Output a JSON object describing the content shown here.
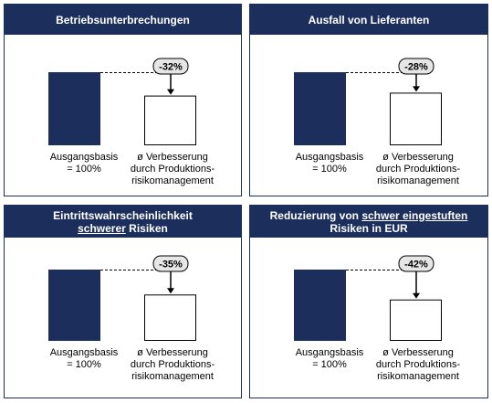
{
  "colors": {
    "navy": "#1c2f5c",
    "white": "#ffffff",
    "bubble": "#e6e6e6"
  },
  "chart_data": [
    {
      "type": "bar",
      "title": "Betriebsunterbrechungen",
      "categories": [
        "Ausgangsbasis = 100%",
        "ø Verbesserung durch Produktions-risikomanagement"
      ],
      "values": [
        100,
        68
      ],
      "annotation": "-32%"
    },
    {
      "type": "bar",
      "title": "Ausfall von Lieferanten",
      "categories": [
        "Ausgangsbasis = 100%",
        "ø Verbesserung durch Produktions-risikomanagement"
      ],
      "values": [
        100,
        72
      ],
      "annotation": "-28%"
    },
    {
      "type": "bar",
      "title": "Eintrittswahrscheinlichkeit schwerer Risiken",
      "categories": [
        "Ausgangsbasis = 100%",
        "ø Verbesserung durch Produktions-risikomanagement"
      ],
      "values": [
        100,
        65
      ],
      "annotation": "-35%"
    },
    {
      "type": "bar",
      "title": "Reduzierung von schwer eingestuften Risiken in EUR",
      "categories": [
        "Ausgangsbasis = 100%",
        "ø Verbesserung durch Produktions-risikomanagement"
      ],
      "values": [
        100,
        58
      ],
      "annotation": "-42%"
    }
  ],
  "panels": [
    {
      "title_parts": [
        "Betriebsunterbrechungen"
      ],
      "base_label": [
        "Ausgangsbasis",
        "= 100%"
      ],
      "improved_label": [
        "ø Verbesserung",
        "durch Produktions-",
        "risikomanagement"
      ]
    },
    {
      "title_parts": [
        "Ausfall von Lieferanten"
      ],
      "base_label": [
        "Ausgangsbasis",
        "= 100%"
      ],
      "improved_label": [
        "ø Verbesserung",
        "durch Produktions-",
        "risikomanagement"
      ]
    },
    {
      "title_parts": [
        "Eintrittswahrscheinlichkeit",
        "schwerer",
        " Risiken"
      ],
      "base_label": [
        "Ausgangsbasis",
        "= 100%"
      ],
      "improved_label": [
        "ø Verbesserung",
        "durch Produktions-",
        "risikomanagement"
      ]
    },
    {
      "title_parts": [
        "Reduzierung von ",
        "schwer eingestuften",
        "Risiken in EUR"
      ],
      "base_label": [
        "Ausgangsbasis",
        "= 100%"
      ],
      "improved_label": [
        "ø Verbesserung",
        "durch Produktions-",
        "risikomanagement"
      ]
    }
  ]
}
